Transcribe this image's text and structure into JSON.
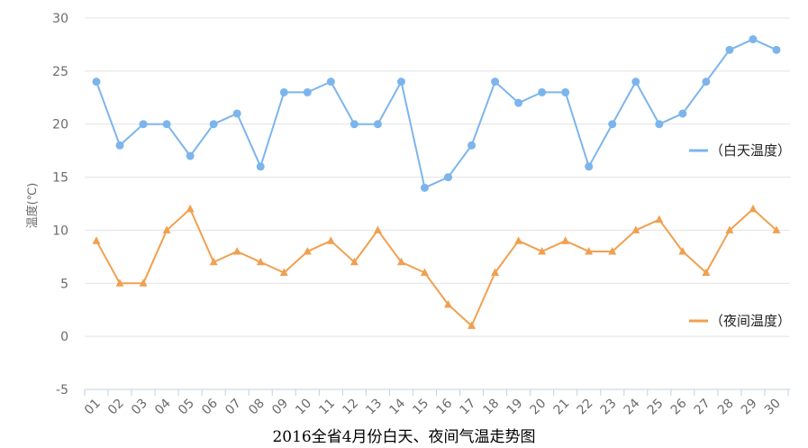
{
  "chart_data": {
    "type": "line",
    "title": "2016全省4月份白天、夜间气温走势图",
    "ylabel": "温度(℃)",
    "xlabel": "",
    "ylim": [
      -5,
      30
    ],
    "yticks": [
      -5,
      0,
      5,
      10,
      15,
      20,
      25,
      30
    ],
    "categories": [
      "01",
      "02",
      "03",
      "04",
      "05",
      "06",
      "07",
      "08",
      "09",
      "10",
      "11",
      "12",
      "13",
      "14",
      "15",
      "16",
      "17",
      "18",
      "19",
      "20",
      "21",
      "22",
      "23",
      "24",
      "25",
      "26",
      "27",
      "28",
      "29",
      "30"
    ],
    "grid": true,
    "legend_position": "right",
    "series": [
      {
        "name": "（白天温度）",
        "color": "#7cb5ec",
        "marker": "circle",
        "values": [
          24,
          18,
          20,
          20,
          17,
          20,
          21,
          16,
          23,
          23,
          24,
          20,
          20,
          24,
          14,
          15,
          18,
          24,
          22,
          23,
          23,
          16,
          20,
          24,
          20,
          21,
          24,
          27,
          28,
          27
        ]
      },
      {
        "name": "（夜间温度）",
        "color": "#f0a050",
        "marker": "triangle",
        "values": [
          9,
          5,
          5,
          10,
          12,
          7,
          8,
          7,
          6,
          8,
          9,
          7,
          10,
          7,
          6,
          3,
          1,
          6,
          9,
          8,
          9,
          8,
          8,
          10,
          11,
          8,
          6,
          10,
          12,
          10
        ]
      }
    ]
  }
}
